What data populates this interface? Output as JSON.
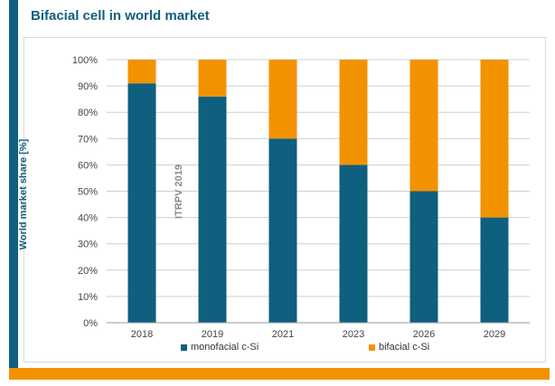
{
  "title": "Bifacial cell in world market",
  "watermark": "ITRPV 2019",
  "colors": {
    "accent": "#0f5f7f",
    "orange": "#f39200",
    "grid": "#cfcfcf"
  },
  "chart_data": {
    "type": "bar",
    "stacked": true,
    "categories": [
      "2018",
      "2019",
      "2021",
      "2023",
      "2026",
      "2029"
    ],
    "series": [
      {
        "name": "monofacial c-Si",
        "color": "#0f5f7f",
        "values": [
          91,
          86,
          70,
          60,
          50,
          40
        ]
      },
      {
        "name": "bifacial c-Si",
        "color": "#f39200",
        "values": [
          9,
          14,
          30,
          40,
          50,
          60
        ]
      }
    ],
    "ylabel": "World market share [%]",
    "ylim": [
      0,
      100
    ],
    "yticks": [
      "0%",
      "10%",
      "20%",
      "30%",
      "40%",
      "50%",
      "60%",
      "70%",
      "80%",
      "90%",
      "100%"
    ],
    "grid": true,
    "legend": "bottom"
  }
}
